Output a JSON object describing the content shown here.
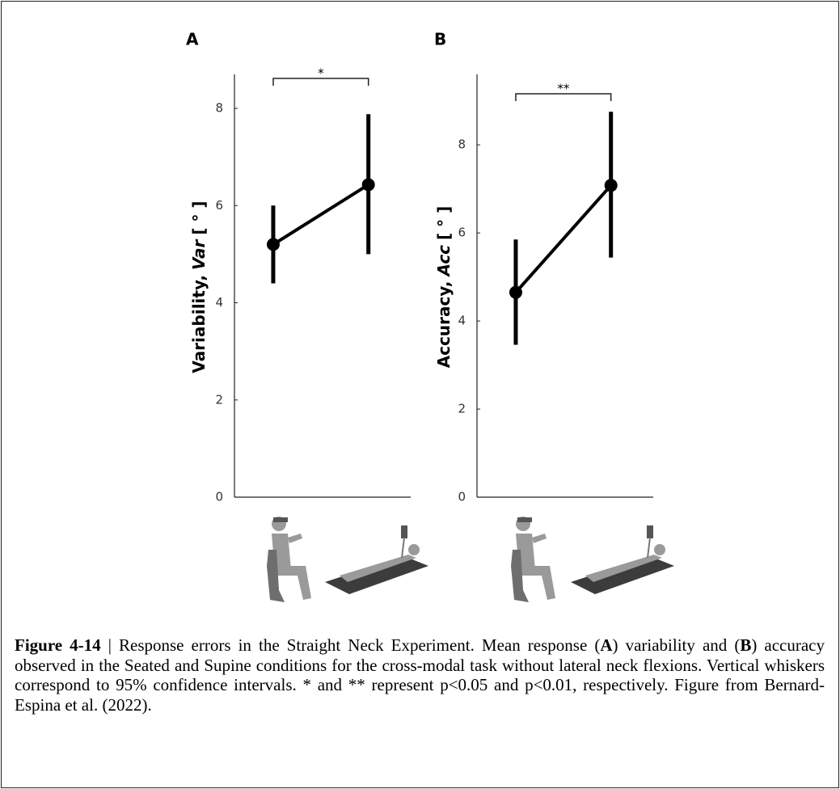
{
  "chart_data": [
    {
      "type": "line",
      "panel": "A",
      "ylabel": {
        "text": "Variability,",
        "italic": "Var",
        "unit": "[ ° ]"
      },
      "categories": [
        null,
        null
      ],
      "ylim": [
        0,
        8.7
      ],
      "yticks": [
        0,
        2,
        4,
        6,
        8
      ],
      "series": [
        {
          "color": "#000000",
          "values": [
            5.2,
            6.43
          ],
          "ci_low": [
            4.4,
            5.0
          ],
          "ci_high": [
            6.0,
            7.88
          ]
        }
      ],
      "annotations": [
        {
          "text": "*"
        }
      ]
    },
    {
      "type": "line",
      "panel": "B",
      "ylabel": {
        "text": "Accuracy,",
        "italic": "Acc",
        "unit": "[ ° ]"
      },
      "categories": [
        null,
        null
      ],
      "ylim": [
        0,
        9.6
      ],
      "yticks": [
        0,
        2,
        4,
        6,
        8
      ],
      "series": [
        {
          "color": "#000000",
          "values": [
            4.65,
            7.08
          ],
          "ci_low": [
            3.46,
            5.44
          ],
          "ci_high": [
            5.85,
            8.75
          ]
        }
      ],
      "annotations": [
        {
          "text": "**"
        }
      ]
    }
  ],
  "caption": {
    "runs": [
      {
        "text": "Figure 4-14",
        "bold": true
      },
      {
        "text": " | Response errors in the Straight Neck Experiment. Mean response (",
        "bold": false
      },
      {
        "text": "A",
        "bold": true
      },
      {
        "text": ") variability and (",
        "bold": false
      },
      {
        "text": "B",
        "bold": true
      },
      {
        "text": ") accuracy observed in the Seated and Supine conditions for the cross-modal task without lateral neck flexions. Vertical whiskers correspond to 95% confidence intervals. * and ** represent p<0.05 and p<0.01, respectively. Figure from Bernard-Espina et al. (2022).",
        "bold": false
      }
    ]
  }
}
